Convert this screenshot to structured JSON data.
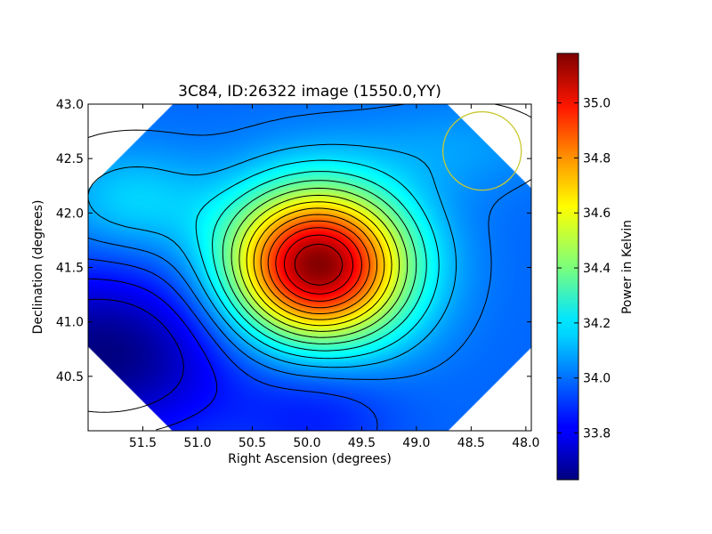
{
  "chart_data": {
    "type": "heatmap",
    "title": "3C84, ID:26322 image (1550.0,YY)",
    "xlabel": "Right Ascension (degrees)",
    "ylabel": "Declination (degrees)",
    "xlim": [
      52.0,
      47.95
    ],
    "ylim": [
      40.0,
      43.0
    ],
    "x_axis_inverted": true,
    "xticks": [
      "51.5",
      "51.0",
      "50.5",
      "50.0",
      "49.5",
      "49.0",
      "48.5",
      "48.0"
    ],
    "xtick_values": [
      51.5,
      51.0,
      50.5,
      50.0,
      49.5,
      49.0,
      48.5,
      48.0
    ],
    "yticks": [
      "40.5",
      "41.0",
      "41.5",
      "42.0",
      "42.5",
      "43.0"
    ],
    "ytick_values": [
      40.5,
      41.0,
      41.5,
      42.0,
      42.5,
      43.0
    ],
    "grid": false,
    "colormap": "jet",
    "colorbar": {
      "label": "Power in Kelvin",
      "range": [
        33.63,
        35.18
      ],
      "ticks": [
        "33.8",
        "34.0",
        "34.2",
        "34.4",
        "34.6",
        "34.8",
        "35.0"
      ],
      "tick_values": [
        33.8,
        34.0,
        34.2,
        34.4,
        34.6,
        34.8,
        35.0
      ]
    },
    "peak": {
      "ra": 49.9,
      "dec": 41.52,
      "value": 35.18
    },
    "minimum": {
      "ra": 51.85,
      "dec": 40.7,
      "value": 33.63
    },
    "secondary_feature": {
      "ra": 51.6,
      "dec": 42.1,
      "value": 34.15
    },
    "beam_circle": {
      "ra": 48.4,
      "dec": 42.57,
      "radius_deg": 0.36,
      "color": "#c8c832"
    }
  }
}
